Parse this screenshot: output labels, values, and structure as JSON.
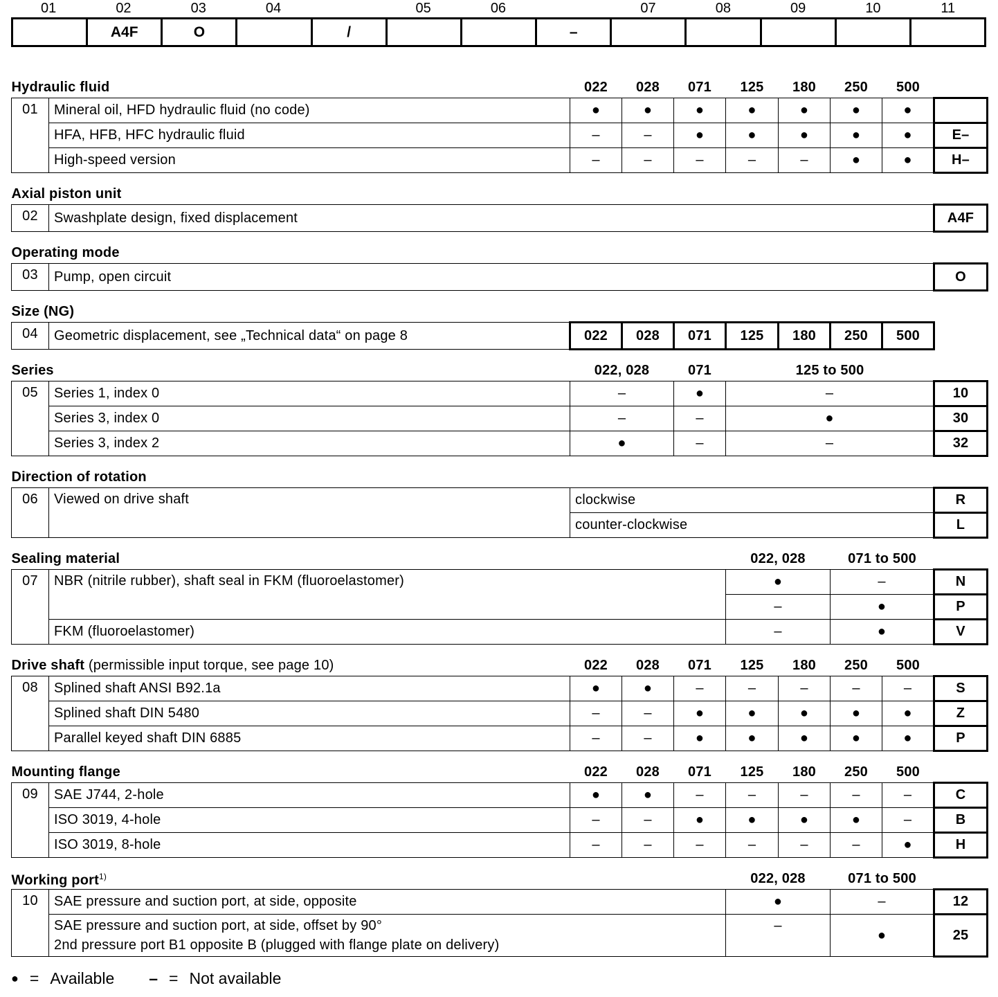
{
  "code_bar": {
    "labels": [
      "01",
      "02",
      "03",
      "04",
      "05",
      "06",
      "07",
      "08",
      "09",
      "10",
      "11"
    ],
    "cells": [
      "",
      "A4F",
      "O",
      "",
      "/",
      "",
      "",
      "–",
      "",
      "",
      "",
      "",
      ""
    ]
  },
  "sections": [
    {
      "id": "01",
      "title": "Hydraulic fluid",
      "columns": [
        "022",
        "028",
        "071",
        "125",
        "180",
        "250",
        "500"
      ],
      "rows": [
        {
          "desc": "Mineral oil, HFD hydraulic fluid (no code)",
          "values": [
            "●",
            "●",
            "●",
            "●",
            "●",
            "●",
            "●"
          ],
          "code": ""
        },
        {
          "desc": "HFA, HFB, HFC hydraulic fluid",
          "values": [
            "–",
            "–",
            "●",
            "●",
            "●",
            "●",
            "●"
          ],
          "code": "E–"
        },
        {
          "desc": "High-speed version",
          "values": [
            "–",
            "–",
            "–",
            "–",
            "–",
            "●",
            "●"
          ],
          "code": "H–"
        }
      ]
    },
    {
      "id": "02",
      "title": "Axial piston unit",
      "rows": [
        {
          "desc": "Swashplate design, fixed displacement",
          "code": "A4F"
        }
      ]
    },
    {
      "id": "03",
      "title": "Operating mode",
      "rows": [
        {
          "desc": "Pump, open circuit",
          "code": "O"
        }
      ]
    },
    {
      "id": "04",
      "title": "Size (NG)",
      "rows": [
        {
          "desc": "Geometric displacement, see „Technical data“ on page 8",
          "values": [
            "022",
            "028",
            "071",
            "125",
            "180",
            "250",
            "500"
          ]
        }
      ]
    },
    {
      "id": "05",
      "title": "Series",
      "columns": [
        "022, 028",
        "071",
        "125 to 500"
      ],
      "rows": [
        {
          "desc": "Series 1, index 0",
          "values": [
            "–",
            "●",
            "–"
          ],
          "code": "10"
        },
        {
          "desc": "Series 3, index 0",
          "values": [
            "–",
            "–",
            "●"
          ],
          "code": "30"
        },
        {
          "desc": "Series 3, index 2",
          "values": [
            "●",
            "–",
            "–"
          ],
          "code": "32"
        }
      ]
    },
    {
      "id": "06",
      "title": "Direction of rotation",
      "rows": [
        {
          "desc": "Viewed on drive shaft",
          "option": "clockwise",
          "code": "R"
        },
        {
          "option": "counter-clockwise",
          "code": "L"
        }
      ]
    },
    {
      "id": "07",
      "title": "Sealing material",
      "columns": [
        "022, 028",
        "071 to 500"
      ],
      "rows": [
        {
          "desc": "NBR (nitrile rubber), shaft seal in FKM (fluoroelastomer)",
          "values": [
            "●",
            "–"
          ],
          "code": "N"
        },
        {
          "values": [
            "–",
            "●"
          ],
          "code": "P"
        },
        {
          "desc": "FKM (fluoroelastomer)",
          "values": [
            "–",
            "●"
          ],
          "code": "V"
        }
      ]
    },
    {
      "id": "08",
      "title": "Drive shaft",
      "title_note": "(permissible input torque, see page 10)",
      "columns": [
        "022",
        "028",
        "071",
        "125",
        "180",
        "250",
        "500"
      ],
      "rows": [
        {
          "desc": "Splined shaft ANSI B92.1a",
          "values": [
            "●",
            "●",
            "–",
            "–",
            "–",
            "–",
            "–"
          ],
          "code": "S"
        },
        {
          "desc": "Splined shaft DIN 5480",
          "values": [
            "–",
            "–",
            "●",
            "●",
            "●",
            "●",
            "●"
          ],
          "code": "Z"
        },
        {
          "desc": "Parallel keyed shaft DIN 6885",
          "values": [
            "–",
            "–",
            "●",
            "●",
            "●",
            "●",
            "●"
          ],
          "code": "P"
        }
      ]
    },
    {
      "id": "09",
      "title": "Mounting flange",
      "columns": [
        "022",
        "028",
        "071",
        "125",
        "180",
        "250",
        "500"
      ],
      "rows": [
        {
          "desc": "SAE J744, 2-hole",
          "values": [
            "●",
            "●",
            "–",
            "–",
            "–",
            "–",
            "–"
          ],
          "code": "C"
        },
        {
          "desc": "ISO 3019, 4-hole",
          "values": [
            "–",
            "–",
            "●",
            "●",
            "●",
            "●",
            "–"
          ],
          "code": "B"
        },
        {
          "desc": "ISO 3019, 8-hole",
          "values": [
            "–",
            "–",
            "–",
            "–",
            "–",
            "–",
            "●"
          ],
          "code": "H"
        }
      ]
    },
    {
      "id": "10",
      "title": "Working port",
      "footnote": "1)",
      "columns": [
        "022, 028",
        "071 to 500"
      ],
      "rows": [
        {
          "desc": "SAE pressure and suction port, at side, opposite",
          "values": [
            "●",
            "–"
          ],
          "code": "12"
        },
        {
          "desc": "SAE pressure and suction port, at side, offset by 90°",
          "desc2": "2nd pressure port B1 opposite B (plugged with flange plate on delivery)",
          "values": [
            "–",
            "●"
          ],
          "code": "25"
        }
      ]
    }
  ],
  "legend": {
    "available_symbol": "●",
    "available_eq": "=",
    "available_label": "Available",
    "na_symbol": "–",
    "na_eq": "=",
    "na_label": "Not available"
  }
}
